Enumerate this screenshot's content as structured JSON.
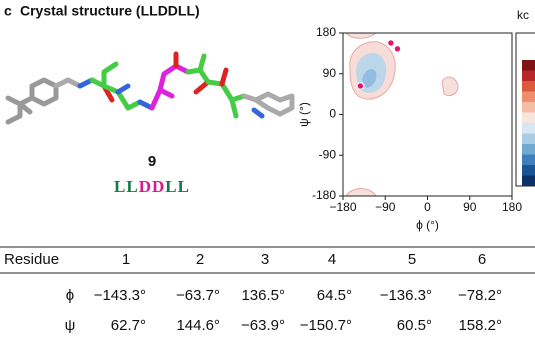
{
  "panel_label": "c",
  "title": "Crystal structure (LLDDLL)",
  "compound": {
    "number": "9",
    "sequence": [
      {
        "text": "LL",
        "color": "#137a4b"
      },
      {
        "text": "DD",
        "color": "#e0168c"
      },
      {
        "text": "LL",
        "color": "#137a4b"
      }
    ]
  },
  "chart_data": {
    "type": "scatter",
    "xlabel": "ϕ (°)",
    "ylabel": "ψ (°)",
    "xlim": [
      -180,
      180
    ],
    "ylim": [
      -180,
      180
    ],
    "xticks": [
      {
        "value": -180,
        "label": "−180"
      },
      {
        "value": -90,
        "label": "−90"
      },
      0,
      90,
      180
    ],
    "yticks": [
      -180,
      -90,
      0,
      90,
      180
    ],
    "series": [
      {
        "color": "#e0156e",
        "x": [
          -143,
          -64,
          -78
        ],
        "y": [
          63,
          145,
          158
        ]
      }
    ],
    "colorbar": {
      "title": "kc",
      "colors": [
        "#7f1416",
        "#b8282a",
        "#dc5a3c",
        "#ee8e6c",
        "#f6bca4",
        "#f7e4dc",
        "#d6e6f2",
        "#a9cbe4",
        "#72a9d2",
        "#3f7fbc",
        "#1c5596",
        "#0b3168"
      ]
    }
  },
  "table": {
    "header": [
      "Residue",
      "1",
      "2",
      "3",
      "4",
      "5",
      "6"
    ],
    "rows": [
      [
        "ϕ",
        "−143.3°",
        "−63.7°",
        "136.5°",
        "64.5°",
        "−136.3°",
        "−78.2°"
      ],
      [
        "ψ",
        "62.7°",
        "144.6°",
        "−63.9°",
        "−150.7°",
        "60.5°",
        "158.2°"
      ]
    ]
  }
}
